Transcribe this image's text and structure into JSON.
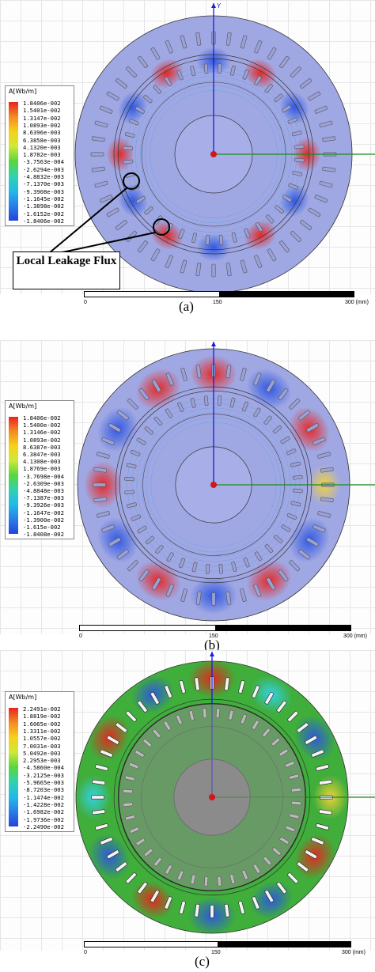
{
  "panels": [
    {
      "caption": "(a)",
      "legend_title": "A[Wb/m]",
      "legend_values": [
        "1.8406e-002",
        "1.5401e-002",
        "1.3147e-002",
        "1.0893e-002",
        "8.6396e-003",
        "6.3858e-003",
        "4.1320e-003",
        "1.8782e-003",
        "-3.7563e-004",
        "-2.6294e-003",
        "-4.8832e-003",
        "-7.1370e-003",
        "-9.3908e-003",
        "-1.1645e-002",
        "-1.3898e-002",
        "-1.6152e-002",
        "-1.8406e-002"
      ],
      "scale": {
        "start": "0",
        "mid": "150",
        "end": "300 (mm)"
      },
      "axis_label": "Y",
      "callout": "Local Leakage Flux"
    },
    {
      "caption": "(b)",
      "legend_title": "A[Wb/m]",
      "legend_values": [
        "1.8406e-002",
        "1.5400e-002",
        "1.3146e-002",
        "1.0893e-002",
        "8.6387e-003",
        "6.3847e-003",
        "4.1308e-003",
        "1.8769e-003",
        "-3.7698e-004",
        "-2.6309e-003",
        "-4.8848e-003",
        "-7.1387e-003",
        "-9.3926e-003",
        "-1.1647e-002",
        "-1.3900e-002",
        "-1.615e-002",
        "-1.8408e-002"
      ],
      "scale": {
        "start": "0",
        "mid": "150",
        "end": "300 (mm)"
      }
    },
    {
      "caption": "(c)",
      "legend_title": "A[Wb/m]",
      "legend_values": [
        "2.2491e-002",
        "1.8819e-002",
        "1.6065e-002",
        "1.3311e-002",
        "1.0557e-002",
        "7.0031e-003",
        "5.0492e-003",
        "2.2953e-003",
        "-4.5860e-004",
        "-3.2125e-003",
        "-5.9665e-003",
        "-8.7203e-003",
        "-1.1474e-002",
        "-1.4228e-002",
        "-1.6982e-002",
        "-1.9736e-002",
        "-2.2490e-002"
      ],
      "scale": {
        "start": "0",
        "mid": "150",
        "end": "300 (mm)"
      }
    }
  ],
  "colors": {
    "stator_a": "#a0a8e4",
    "stator_b": "#a0a8e4",
    "stator_c": "#3fae3b",
    "rotor_a": "#a8aee8",
    "rotor_c": "#8d8d8d",
    "hot": "#e8231f",
    "cold": "#2d55e0",
    "axis_y": "#1a1ae0",
    "axis_x": "#1a8a1a"
  }
}
